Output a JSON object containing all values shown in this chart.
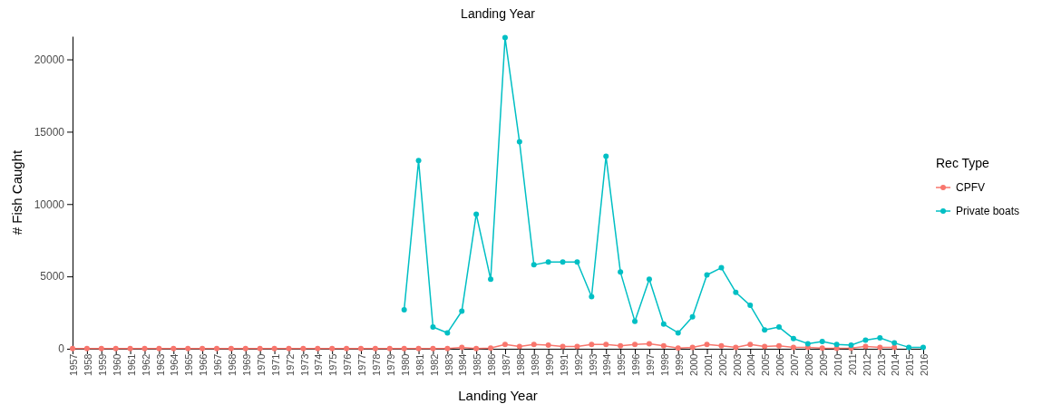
{
  "chart_data": {
    "type": "line",
    "title": "Landing Year",
    "xlabel": "Landing Year",
    "ylabel": "# Fish Caught",
    "legend_title": "Rec Type",
    "legend": "right",
    "marker": "circle",
    "grid": false,
    "categories": [
      "1957",
      "1958",
      "1959",
      "1960",
      "1961",
      "1962",
      "1963",
      "1964",
      "1965",
      "1966",
      "1967",
      "1968",
      "1969",
      "1970",
      "1971",
      "1972",
      "1973",
      "1974",
      "1975",
      "1976",
      "1977",
      "1978",
      "1979",
      "1980",
      "1981",
      "1982",
      "1983",
      "1984",
      "1985",
      "1986",
      "1987",
      "1988",
      "1989",
      "1990",
      "1991",
      "1992",
      "1993",
      "1994",
      "1995",
      "1996",
      "1997",
      "1998",
      "1999",
      "2000",
      "2001",
      "2002",
      "2003",
      "2004",
      "2005",
      "2006",
      "2007",
      "2008",
      "2009",
      "2010",
      "2011",
      "2012",
      "2013",
      "2014",
      "2015",
      "2016"
    ],
    "ylim": [
      0,
      21600
    ],
    "yticks": [
      0,
      5000,
      10000,
      15000,
      20000
    ],
    "series": [
      {
        "name": "CPFV",
        "color": "#f8766d",
        "values": [
          20,
          20,
          20,
          20,
          20,
          20,
          20,
          20,
          20,
          20,
          20,
          20,
          20,
          20,
          20,
          20,
          20,
          20,
          20,
          20,
          20,
          20,
          20,
          20,
          20,
          20,
          20,
          100,
          20,
          50,
          300,
          150,
          300,
          250,
          150,
          150,
          300,
          300,
          200,
          300,
          350,
          200,
          50,
          100,
          300,
          200,
          100,
          300,
          150,
          200,
          100,
          100,
          50,
          30,
          50,
          150,
          100,
          100,
          null,
          null
        ]
      },
      {
        "name": "Private boats",
        "color": "#00bfc4",
        "values": [
          null,
          null,
          null,
          null,
          null,
          null,
          null,
          null,
          null,
          null,
          null,
          null,
          null,
          null,
          null,
          null,
          null,
          null,
          null,
          null,
          null,
          null,
          null,
          2700,
          13000,
          1500,
          1100,
          2600,
          9300,
          4800,
          21500,
          14300,
          5800,
          6000,
          6000,
          6000,
          3600,
          13300,
          5300,
          1900,
          4800,
          1700,
          1100,
          2200,
          5100,
          5600,
          3900,
          3000,
          1300,
          1500,
          700,
          350,
          500,
          300,
          250,
          600,
          750,
          400,
          100,
          100
        ]
      }
    ]
  }
}
